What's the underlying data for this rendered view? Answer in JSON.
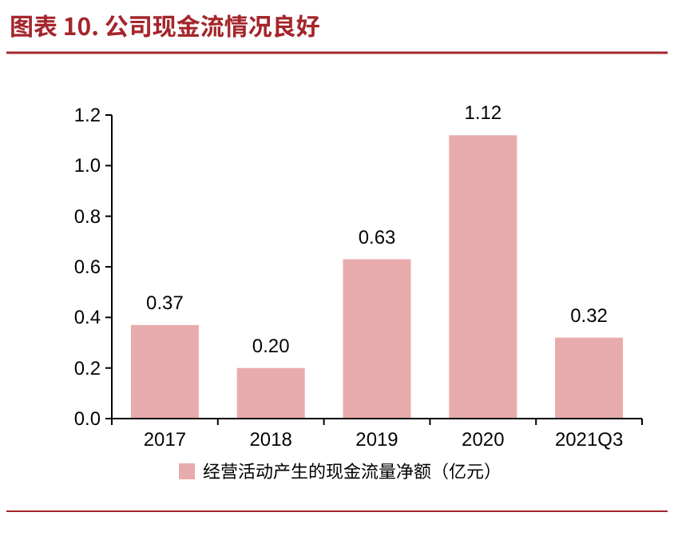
{
  "chart_data": {
    "type": "bar",
    "title": "图表 10. 公司现金流情况良好",
    "categories": [
      "2017",
      "2018",
      "2019",
      "2020",
      "2021Q3"
    ],
    "series": [
      {
        "name": "经营活动产生的现金流量净额（亿元）",
        "color": "#e8abab",
        "values": [
          0.37,
          0.2,
          0.63,
          1.12,
          0.32
        ]
      }
    ],
    "value_labels": [
      "0.37",
      "0.20",
      "0.63",
      "1.12",
      "0.32"
    ],
    "ylim": [
      0,
      1.2
    ],
    "yticks": [
      {
        "value": 0,
        "label": "0.0"
      },
      {
        "value": 0.2,
        "label": "0.2"
      },
      {
        "value": 0.4,
        "label": "0.4"
      },
      {
        "value": 0.6,
        "label": "0.6"
      },
      {
        "value": 0.8,
        "label": "0.8"
      },
      {
        "value": 1,
        "label": "1.0"
      },
      {
        "value": 1.2,
        "label": "1.2"
      }
    ],
    "grid": false,
    "legend": "bottom"
  }
}
